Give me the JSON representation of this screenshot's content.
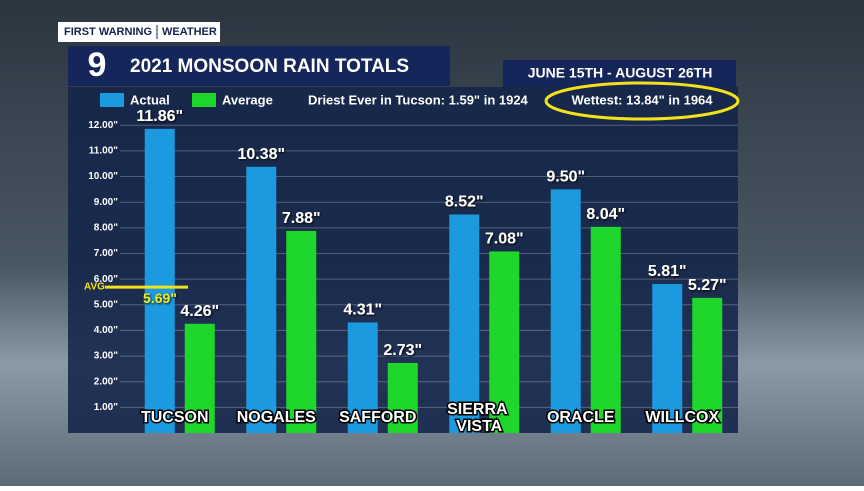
{
  "header": {
    "brand": "FIRST WARNING",
    "section": "WEATHER",
    "channel": "9"
  },
  "chart_data": {
    "type": "bar",
    "title": "2021 MONSOON RAIN TOTALS",
    "subtitle": "JUNE 15TH - AUGUST 26TH",
    "annotations": [
      "Driest Ever in Tucson: 1.59\" in 1924",
      "Wettest: 13.84\" in 1964"
    ],
    "categories": [
      "TUCSON",
      "NOGALES",
      "SAFFORD",
      "SIERRA VISTA",
      "ORACLE",
      "WILLCOX"
    ],
    "series": [
      {
        "name": "Actual",
        "color": "#1c9ae0",
        "values": [
          11.86,
          10.38,
          4.31,
          8.52,
          9.5,
          5.81
        ],
        "value_labels": [
          "11.86\"",
          "10.38\"",
          "4.31\"",
          "8.52\"",
          "9.50\"",
          "5.81\""
        ]
      },
      {
        "name": "Average",
        "color": "#1fd62a",
        "values": [
          4.26,
          7.88,
          2.73,
          7.08,
          8.04,
          5.27
        ],
        "value_labels": [
          "4.26\"",
          "7.88\"",
          "2.73\"",
          "7.08\"",
          "8.04\"",
          "5.27\""
        ]
      }
    ],
    "reference_line": {
      "name": "AVG",
      "value": 5.69,
      "value_label": "5.69\"",
      "color": "#f2e21a"
    },
    "ylim": [
      0,
      12.4
    ],
    "yticks": [
      {
        "value": 1,
        "label": "1.00\""
      },
      {
        "value": 2,
        "label": "2.00\""
      },
      {
        "value": 3,
        "label": "3.00\""
      },
      {
        "value": 4,
        "label": "4.00\""
      },
      {
        "value": 5,
        "label": "5.00\""
      },
      {
        "value": 6,
        "label": "6.00\""
      },
      {
        "value": 7,
        "label": "7.00\""
      },
      {
        "value": 8,
        "label": "8.00\""
      },
      {
        "value": 9,
        "label": "9.00\""
      },
      {
        "value": 10,
        "label": "10.00\""
      },
      {
        "value": 11,
        "label": "11.00\""
      },
      {
        "value": 12,
        "label": "12.00\""
      }
    ],
    "grid": true
  }
}
